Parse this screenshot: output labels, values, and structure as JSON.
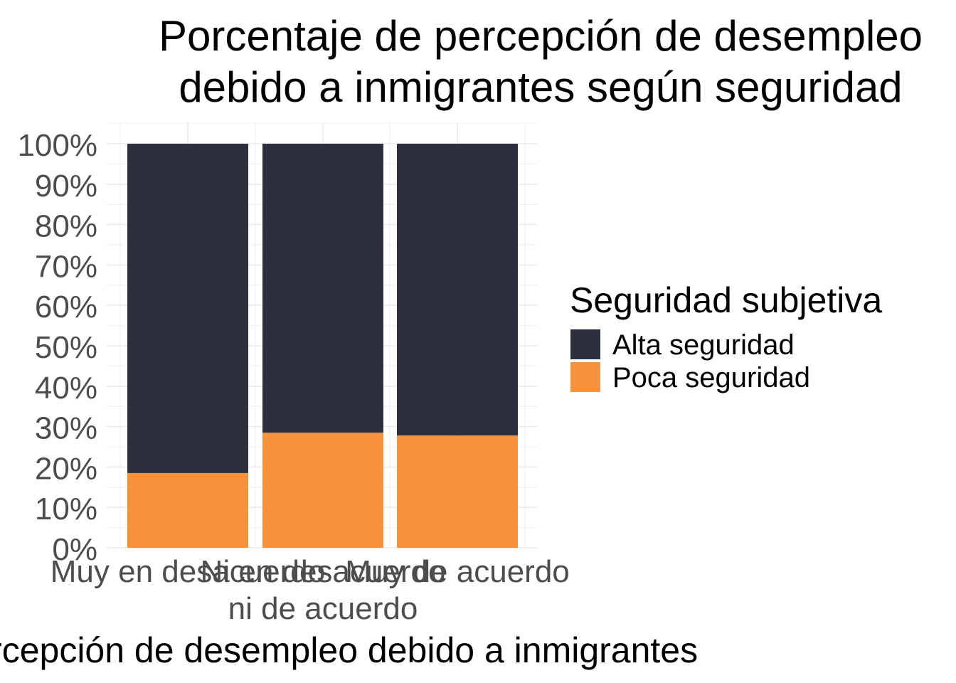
{
  "chart_data": {
    "type": "bar",
    "stacked": true,
    "title_lines": [
      "Porcentaje de percepción de desempleo",
      "debido a inmigrantes según seguridad"
    ],
    "xlabel": "Percepción de desempleo debido a inmigrantes",
    "ylabel": "",
    "categories": [
      [
        "Muy en desacuerdo"
      ],
      [
        "Ni en desacuerdo",
        "ni de acuerdo"
      ],
      [
        "Muy de acuerdo"
      ]
    ],
    "ylim": [
      0,
      1
    ],
    "yticks": [
      "0%",
      "10%",
      "20%",
      "30%",
      "40%",
      "50%",
      "60%",
      "70%",
      "80%",
      "90%",
      "100%"
    ],
    "legend_title": "Seguridad subjetiva",
    "legend_position": "right",
    "series": [
      {
        "name": "Poca seguridad",
        "color": "#F7923E",
        "values": [
          0.185,
          0.285,
          0.278
        ]
      },
      {
        "name": "Alta seguridad",
        "color": "#2C303E",
        "values": [
          0.815,
          0.715,
          0.722
        ]
      }
    ],
    "legend_order": [
      "Alta seguridad",
      "Poca seguridad"
    ],
    "grid": true
  }
}
